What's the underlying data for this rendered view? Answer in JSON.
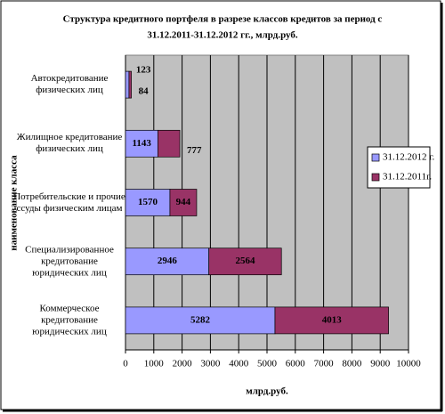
{
  "chart_data": {
    "type": "stacked-bar-horizontal",
    "title": [
      "Структура кредитного портфеля в разрезе классов кредитов за период с",
      "31.12.2011-31.12.2012 гг., млрд.руб."
    ],
    "x_label": "млрд.руб.",
    "y_label": "наименование класса",
    "categories": [
      "Автокредитование физических лиц",
      "Жилищное кредитование физических лиц",
      "Потребительские и прочие ссуды физическим лицам",
      "Специализированное кредитование юридических лиц",
      "Коммерческое кредитование юридических лиц"
    ],
    "series": [
      {
        "name": "31.12.2012 г.",
        "color": "#9999ff",
        "values": [
          123,
          1143,
          1570,
          2946,
          5282
        ]
      },
      {
        "name": "31.12.2011г.",
        "color": "#993366",
        "values": [
          84,
          777,
          944,
          2564,
          4013
        ]
      }
    ],
    "xlim": [
      0,
      10000
    ],
    "xticks": [
      0,
      1000,
      2000,
      3000,
      4000,
      5000,
      6000,
      7000,
      8000,
      9000,
      10000
    ],
    "grid": true,
    "legend": "right"
  }
}
